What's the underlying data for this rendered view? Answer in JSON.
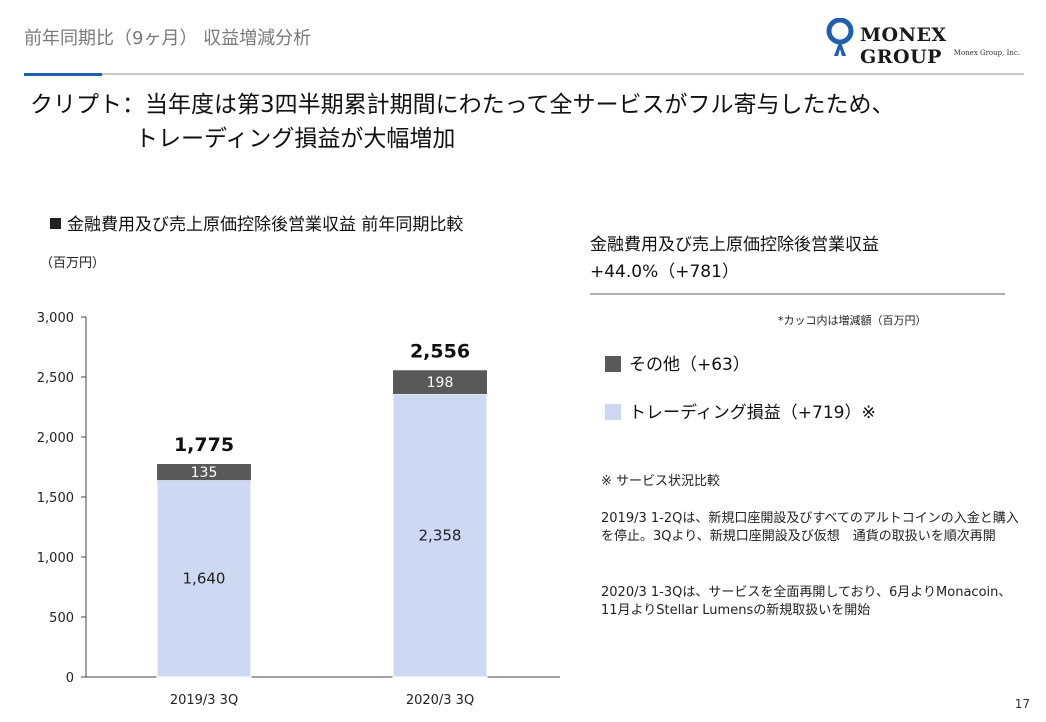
{
  "header": {
    "title": "前年同期比（9ヶ月） 収益増減分析",
    "logo_text": "MONEX GROUP",
    "logo_sub": "Monex Group, Inc."
  },
  "headline": {
    "line1": "クリプト：当年度は第3四半期累計期間にわたって全サービスがフル寄与したため、",
    "line2": "トレーディング損益が大幅増加"
  },
  "colors": {
    "other": "#595959",
    "trading": "#cdd9f3",
    "accent": "#1f5fae"
  },
  "chart_data": {
    "type": "bar",
    "stacked": true,
    "title": "金融費用及び売上原価控除後営業収益 前年同期比較",
    "ylabel": "（百万円）",
    "categories": [
      "2019/3 3Q",
      "2020/3 3Q"
    ],
    "series": [
      {
        "name": "トレーディング損益",
        "values": [
          1640,
          2358
        ]
      },
      {
        "name": "その他",
        "values": [
          135,
          198
        ]
      }
    ],
    "totals": [
      1775,
      2556
    ],
    "total_labels": [
      "1,775",
      "2,556"
    ],
    "value_labels": [
      [
        "1,640",
        "2,358"
      ],
      [
        "135",
        "198"
      ]
    ],
    "ylim": [
      0,
      3000
    ],
    "yticks": [
      0,
      500,
      1000,
      1500,
      2000,
      2500,
      3000
    ],
    "ytick_labels": [
      "0",
      "500",
      "1,000",
      "1,500",
      "2,000",
      "2,500",
      "3,000"
    ],
    "grid": false
  },
  "right": {
    "title1": "金融費用及び売上原価控除後営業収益",
    "title2": "+44.0%（+781）",
    "note": "*カッコ内は増減額（百万円）",
    "legend": [
      {
        "label": "その他（+63）"
      },
      {
        "label": "トレーディング損益（+719）※"
      }
    ],
    "service_head": "※ サービス状況比較",
    "para1": "2019/3 1-2Qは、新規口座開設及びすべてのアルトコインの入金と購入を停止。3Qより、新規口座開設及び仮想　通貨の取扱いを順次再開",
    "para2": "2020/3 1-3Qは、サービスを全面再開しており、6月よりMonacoin、11月よりStellar Lumensの新規取扱いを開始"
  },
  "page_number": "17"
}
